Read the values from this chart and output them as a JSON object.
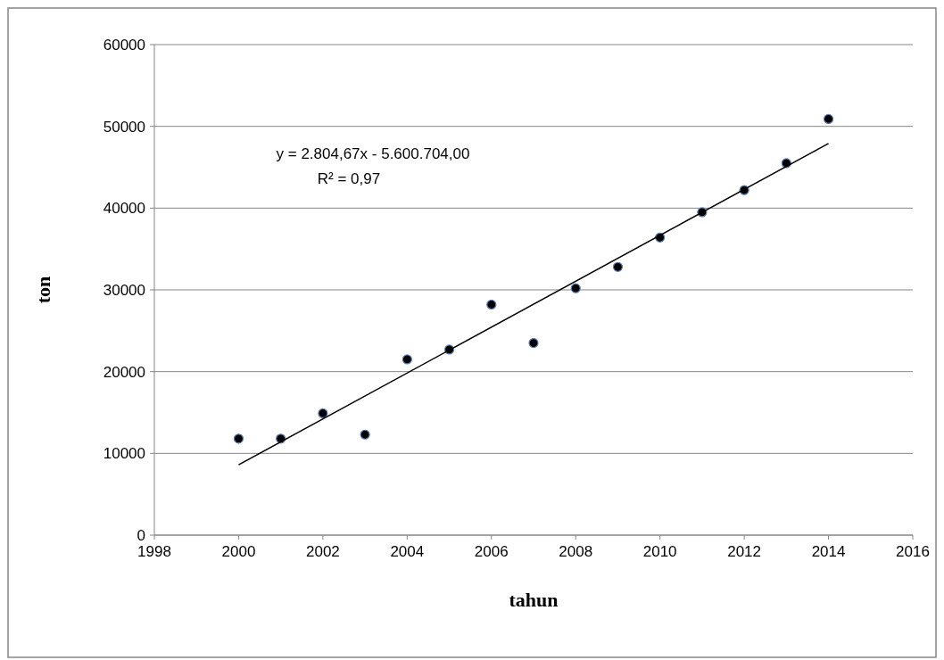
{
  "chart_data": {
    "type": "scatter",
    "xlabel": "tahun",
    "ylabel": "ton",
    "series": [
      {
        "color": "#000000",
        "x": [
          2000,
          2001,
          2002,
          2003,
          2004,
          2005,
          2006,
          2007,
          2008,
          2009,
          2010,
          2011,
          2012,
          2013,
          2014
        ],
        "values": [
          11800,
          11800,
          14900,
          12300,
          21500,
          22700,
          28200,
          23500,
          30200,
          32800,
          36400,
          39500,
          42200,
          45500,
          50900
        ],
        "marker": "circle"
      },
      {
        "type": "line",
        "color": "#000000",
        "x": [
          2000,
          2014
        ],
        "values": [
          8600,
          47900
        ],
        "marker": "none",
        "line_style": "solid"
      }
    ],
    "annotations": [
      "y = 2.804,67x - 5.600.704,00",
      "R² = 0,97"
    ],
    "xlim": [
      1998,
      2016
    ],
    "xticks": [
      1998,
      2000,
      2002,
      2004,
      2006,
      2008,
      2010,
      2012,
      2014,
      2016
    ],
    "ylim": [
      0,
      60000
    ],
    "yticks": [
      0,
      10000,
      20000,
      30000,
      40000,
      50000,
      60000
    ],
    "grid": "y"
  }
}
